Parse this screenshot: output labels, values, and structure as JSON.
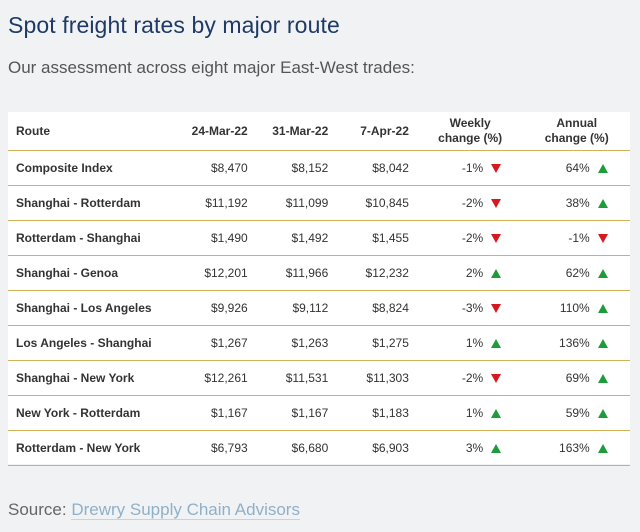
{
  "title": "Spot freight rates by major route",
  "subtitle": "Our assessment across eight major East-West trades:",
  "table": {
    "headers": {
      "route": "Route",
      "d1": "24-Mar-22",
      "d2": "31-Mar-22",
      "d3": "7-Apr-22",
      "weekly_line1": "Weekly",
      "weekly_line2": "change (%)",
      "annual_line1": "Annual",
      "annual_line2": "change (%)"
    },
    "rows": [
      {
        "route": "Composite Index",
        "d1": "$8,470",
        "d2": "$8,152",
        "d3": "$8,042",
        "weekly": "-1%",
        "weekly_dir": "down",
        "annual": "64%",
        "annual_dir": "up"
      },
      {
        "route": "Shanghai - Rotterdam",
        "d1": "$11,192",
        "d2": "$11,099",
        "d3": "$10,845",
        "weekly": "-2%",
        "weekly_dir": "down",
        "annual": "38%",
        "annual_dir": "up"
      },
      {
        "route": "Rotterdam - Shanghai",
        "d1": "$1,490",
        "d2": "$1,492",
        "d3": "$1,455",
        "weekly": "-2%",
        "weekly_dir": "down",
        "annual": "-1%",
        "annual_dir": "down"
      },
      {
        "route": "Shanghai - Genoa",
        "d1": "$12,201",
        "d2": "$11,966",
        "d3": "$12,232",
        "weekly": "2%",
        "weekly_dir": "up",
        "annual": "62%",
        "annual_dir": "up"
      },
      {
        "route": "Shanghai - Los Angeles",
        "d1": "$9,926",
        "d2": "$9,112",
        "d3": "$8,824",
        "weekly": "-3%",
        "weekly_dir": "down",
        "annual": "110%",
        "annual_dir": "up"
      },
      {
        "route": "Los Angeles - Shanghai",
        "d1": "$1,267",
        "d2": "$1,263",
        "d3": "$1,275",
        "weekly": "1%",
        "weekly_dir": "up",
        "annual": "136%",
        "annual_dir": "up"
      },
      {
        "route": "Shanghai - New York",
        "d1": "$12,261",
        "d2": "$11,531",
        "d3": "$11,303",
        "weekly": "-2%",
        "weekly_dir": "down",
        "annual": "69%",
        "annual_dir": "up"
      },
      {
        "route": "New York - Rotterdam",
        "d1": "$1,167",
        "d2": "$1,167",
        "d3": "$1,183",
        "weekly": "1%",
        "weekly_dir": "up",
        "annual": "59%",
        "annual_dir": "up"
      },
      {
        "route": "Rotterdam - New York",
        "d1": "$6,793",
        "d2": "$6,680",
        "d3": "$6,903",
        "weekly": "3%",
        "weekly_dir": "up",
        "annual": "163%",
        "annual_dir": "up"
      }
    ]
  },
  "source": {
    "prefix": "Source: ",
    "link_text": "Drewry Supply Chain Advisors"
  },
  "colors": {
    "title": "#1f3a64",
    "up_arrow": "#1e9b3a",
    "down_arrow": "#d7191f",
    "row_border": "#d1b25a",
    "link": "#8fb0c9"
  }
}
